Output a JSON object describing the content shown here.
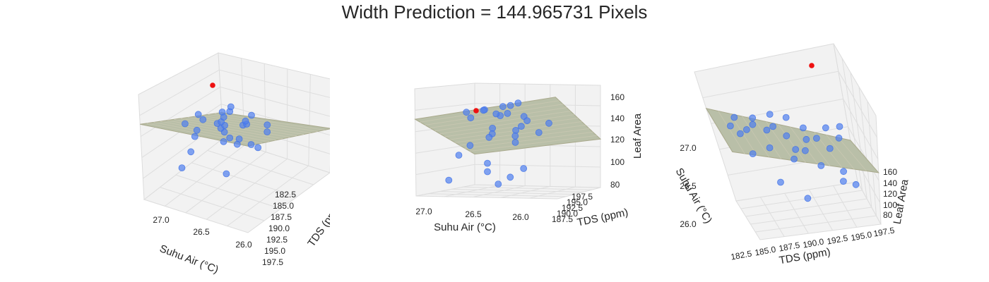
{
  "figure": {
    "title": "Width Prediction = 144.965731 Pixels"
  },
  "chart_data": {
    "type": "scatter",
    "title": "Width Prediction = 144.965731 Pixels",
    "xlabel": "Suhu Air (°C)",
    "ylabel": "TDS (ppm)",
    "zlabel": "Leaf Area",
    "x_ticks": [
      "27.0",
      "26.5",
      "26.0"
    ],
    "y_ticks": [
      "182.5",
      "185.0",
      "187.5",
      "190.0",
      "192.5",
      "195.0",
      "197.5"
    ],
    "z_ticks": [
      "80",
      "100",
      "120",
      "140",
      "160"
    ],
    "xlim": [
      25.9,
      27.2
    ],
    "ylim": [
      181.5,
      198.5
    ],
    "zlim": [
      75,
      165
    ],
    "prediction": {
      "x": 27.1,
      "y": 182.5,
      "z": 145.0
    },
    "observations": [
      {
        "x": 26.8,
        "y": 183.5,
        "z": 151
      },
      {
        "x": 26.7,
        "y": 184.5,
        "z": 149
      },
      {
        "x": 26.6,
        "y": 185.5,
        "z": 148
      },
      {
        "x": 26.5,
        "y": 183.0,
        "z": 146
      },
      {
        "x": 26.4,
        "y": 186.0,
        "z": 145
      },
      {
        "x": 26.3,
        "y": 184.0,
        "z": 144
      },
      {
        "x": 26.6,
        "y": 187.0,
        "z": 142
      },
      {
        "x": 26.5,
        "y": 188.0,
        "z": 140
      },
      {
        "x": 26.7,
        "y": 189.0,
        "z": 139
      },
      {
        "x": 26.4,
        "y": 190.0,
        "z": 141
      },
      {
        "x": 26.2,
        "y": 188.5,
        "z": 138
      },
      {
        "x": 26.8,
        "y": 186.5,
        "z": 136
      },
      {
        "x": 26.9,
        "y": 190.5,
        "z": 133
      },
      {
        "x": 26.6,
        "y": 191.5,
        "z": 130
      },
      {
        "x": 26.3,
        "y": 192.0,
        "z": 128
      },
      {
        "x": 26.5,
        "y": 193.0,
        "z": 126
      },
      {
        "x": 26.7,
        "y": 194.0,
        "z": 124
      },
      {
        "x": 26.2,
        "y": 195.0,
        "z": 122
      },
      {
        "x": 26.4,
        "y": 196.0,
        "z": 120
      },
      {
        "x": 26.1,
        "y": 197.0,
        "z": 118
      },
      {
        "x": 26.6,
        "y": 189.5,
        "z": 117
      },
      {
        "x": 26.3,
        "y": 185.0,
        "z": 116
      },
      {
        "x": 26.0,
        "y": 191.0,
        "z": 105
      },
      {
        "x": 26.2,
        "y": 193.5,
        "z": 97
      },
      {
        "x": 26.5,
        "y": 195.5,
        "z": 92
      },
      {
        "x": 26.1,
        "y": 196.5,
        "z": 88
      },
      {
        "x": 26.0,
        "y": 188.0,
        "z": 85
      },
      {
        "x": 26.3,
        "y": 197.5,
        "z": 83
      },
      {
        "x": 26.4,
        "y": 190.5,
        "z": 81
      }
    ]
  }
}
